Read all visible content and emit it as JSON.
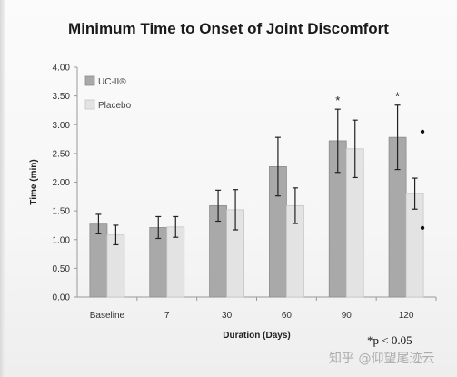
{
  "chart_data": {
    "type": "bar",
    "title": "Minimum Time to Onset of Joint Discomfort",
    "xlabel": "Duration (Days)",
    "ylabel": "Time (min)",
    "ylim": [
      0,
      4
    ],
    "y_ticks": [
      "0.00",
      "0.50",
      "1.00",
      "1.50",
      "2.00",
      "2.50",
      "3.00",
      "3.50",
      "4.00"
    ],
    "categories": [
      "Baseline",
      "7",
      "30",
      "60",
      "90",
      "120"
    ],
    "legend_position": "top-left",
    "grid": false,
    "series": [
      {
        "name": "UC-II®",
        "color": "#a9a9a9",
        "values": [
          1.27,
          1.21,
          1.59,
          2.27,
          2.72,
          2.78
        ],
        "error": [
          0.17,
          0.19,
          0.27,
          0.51,
          0.55,
          0.56
        ]
      },
      {
        "name": "Placebo",
        "color": "#e3e3e3",
        "values": [
          1.08,
          1.22,
          1.52,
          1.59,
          2.58,
          1.8
        ],
        "error": [
          0.17,
          0.18,
          0.35,
          0.31,
          0.5,
          0.27
        ]
      }
    ],
    "significance_markers": [
      {
        "category": "90",
        "series": "UC-II®",
        "label": "*"
      },
      {
        "category": "120",
        "series": "UC-II®",
        "label": "*"
      }
    ],
    "side_dots": [
      "•",
      "•"
    ],
    "footnote": "*p < 0.05"
  },
  "watermark": "知乎 @仰望尾迹云"
}
